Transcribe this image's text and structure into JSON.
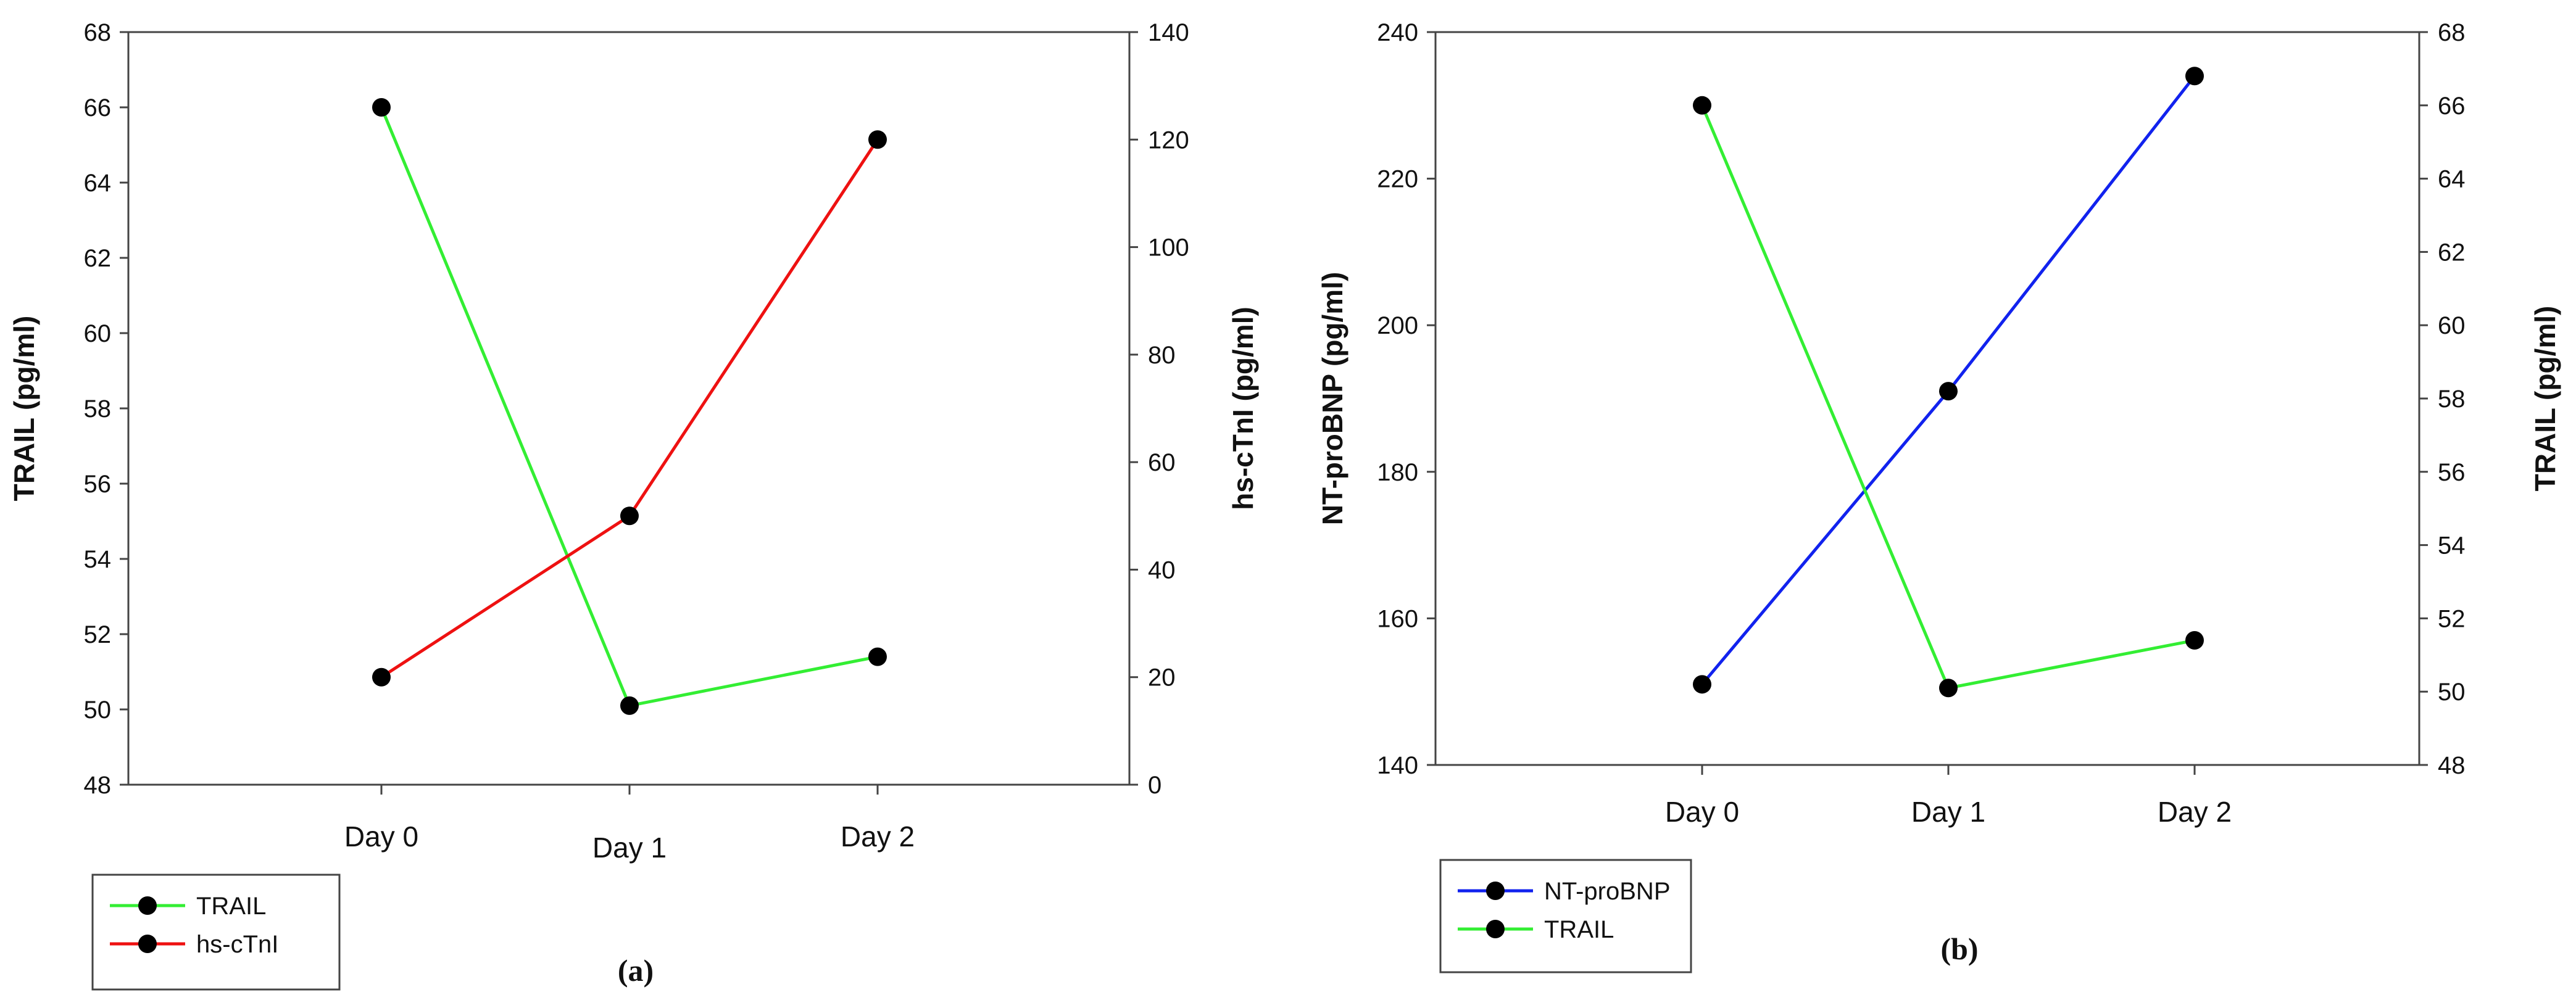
{
  "chart_data": [
    {
      "type": "line",
      "panel_label": "(a)",
      "categories": [
        "Day 0",
        "Day 1",
        "Day 2"
      ],
      "left_axis": {
        "label": "TRAIL (pg/ml)",
        "range": [
          48,
          68
        ],
        "ticks": [
          "48",
          "50",
          "52",
          "54",
          "56",
          "58",
          "60",
          "62",
          "64",
          "66",
          "68"
        ]
      },
      "right_axis": {
        "label": "hs-cTnI (pg/ml)",
        "range": [
          0,
          140
        ],
        "ticks": [
          "0",
          "20",
          "40",
          "60",
          "80",
          "100",
          "120",
          "140"
        ]
      },
      "series": [
        {
          "name": "TRAIL",
          "axis": "left",
          "color": "#33ee33",
          "values": [
            66.0,
            50.1,
            51.4
          ]
        },
        {
          "name": "hs-cTnI",
          "axis": "right",
          "color": "#ee1111",
          "values": [
            20,
            50,
            120
          ]
        }
      ],
      "legend": {
        "position": "bottom-left",
        "entries": [
          "TRAIL",
          "hs-cTnI"
        ]
      }
    },
    {
      "type": "line",
      "panel_label": "(b)",
      "categories": [
        "Day 0",
        "Day 1",
        "Day 2"
      ],
      "left_axis": {
        "label": "NT-proBNP (pg/ml)",
        "range": [
          140,
          240
        ],
        "ticks": [
          "140",
          "160",
          "180",
          "200",
          "220",
          "240"
        ]
      },
      "right_axis": {
        "label": "TRAIL  (pg/ml)",
        "range": [
          48,
          68
        ],
        "ticks": [
          "48",
          "50",
          "52",
          "54",
          "56",
          "58",
          "60",
          "62",
          "64",
          "66",
          "68"
        ]
      },
      "series": [
        {
          "name": "NT-proBNP",
          "axis": "left",
          "color": "#1122ee",
          "values": [
            151,
            191,
            234
          ]
        },
        {
          "name": "TRAIL",
          "axis": "right",
          "color": "#33ee33",
          "values": [
            66.0,
            50.1,
            51.4
          ]
        }
      ],
      "legend": {
        "position": "bottom-left",
        "entries": [
          "NT-proBNP",
          "TRAIL"
        ]
      }
    }
  ]
}
